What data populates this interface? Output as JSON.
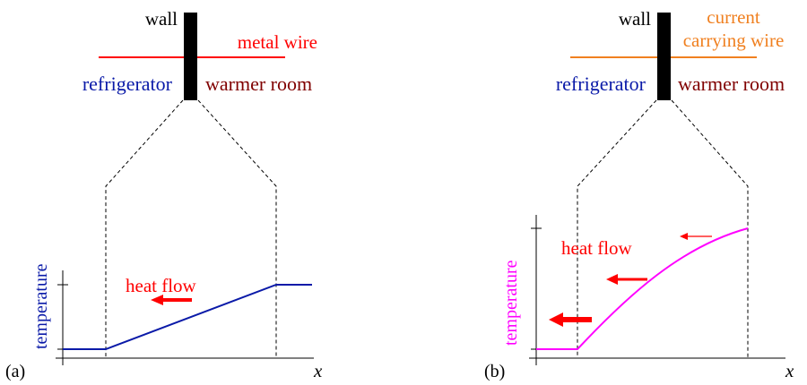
{
  "colors": {
    "blue": "#0a1aa8",
    "red": "#ff0000",
    "orange": "#f08020",
    "darkred": "#800000",
    "magenta": "#ff00ff",
    "black": "#000000"
  },
  "panel_a": {
    "label": "(a)",
    "wall_label": "wall",
    "wire_label": "metal wire",
    "left_label": "refrigerator",
    "right_label": "warmer room",
    "ylabel": "temperature",
    "xlabel": "x",
    "heat_flow_label": "heat flow"
  },
  "panel_b": {
    "label": "(b)",
    "wall_label": "wall",
    "wire_label_line1": "current",
    "wire_label_line2": "carrying wire",
    "left_label": "refrigerator",
    "right_label": "warmer room",
    "ylabel": "temperature",
    "xlabel": "x",
    "heat_flow_label": "heat flow"
  }
}
